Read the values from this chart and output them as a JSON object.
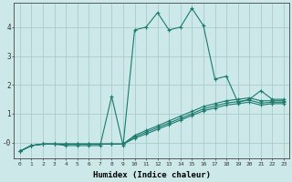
{
  "xlabel": "Humidex (Indice chaleur)",
  "bg_color": "#cce8e8",
  "grid_color": "#aacccc",
  "line_color": "#1a7a6e",
  "xlim": [
    -0.5,
    23.5
  ],
  "ylim": [
    -0.55,
    4.85
  ],
  "xticks": [
    0,
    1,
    2,
    3,
    4,
    5,
    6,
    7,
    8,
    9,
    10,
    11,
    12,
    13,
    14,
    15,
    16,
    17,
    18,
    19,
    20,
    21,
    22,
    23
  ],
  "yticks": [
    0,
    1,
    2,
    3,
    4
  ],
  "ytick_labels": [
    "-0",
    "1",
    "2",
    "3",
    "4"
  ],
  "main_x": [
    0,
    1,
    2,
    3,
    4,
    5,
    6,
    7,
    8,
    9,
    10,
    11,
    12,
    13,
    14,
    15,
    16,
    17,
    18,
    19,
    20,
    21,
    22,
    23
  ],
  "main_y": [
    -0.3,
    -0.1,
    -0.05,
    -0.05,
    -0.1,
    -0.1,
    -0.1,
    -0.1,
    1.6,
    -0.1,
    3.9,
    4.0,
    4.5,
    3.9,
    4.0,
    4.65,
    4.05,
    2.2,
    2.3,
    1.4,
    1.5,
    1.8,
    1.5,
    1.5
  ],
  "line1_x": [
    0,
    1,
    2,
    3,
    4,
    5,
    6,
    7,
    8,
    9,
    10,
    11,
    12,
    13,
    14,
    15,
    16,
    17,
    18,
    19,
    20,
    21,
    22,
    23
  ],
  "line1_y": [
    -0.3,
    -0.1,
    -0.05,
    -0.05,
    -0.05,
    -0.05,
    -0.05,
    -0.05,
    -0.05,
    -0.05,
    0.25,
    0.42,
    0.58,
    0.75,
    0.92,
    1.08,
    1.25,
    1.35,
    1.45,
    1.5,
    1.55,
    1.45,
    1.45,
    1.45
  ],
  "line2_x": [
    0,
    1,
    2,
    3,
    4,
    5,
    6,
    7,
    8,
    9,
    10,
    11,
    12,
    13,
    14,
    15,
    16,
    17,
    18,
    19,
    20,
    21,
    22,
    23
  ],
  "line2_y": [
    -0.3,
    -0.1,
    -0.05,
    -0.05,
    -0.05,
    -0.05,
    -0.05,
    -0.05,
    -0.05,
    -0.05,
    0.2,
    0.36,
    0.52,
    0.68,
    0.84,
    1.0,
    1.17,
    1.27,
    1.37,
    1.42,
    1.47,
    1.37,
    1.4,
    1.4
  ],
  "line3_x": [
    0,
    1,
    2,
    3,
    4,
    5,
    6,
    7,
    8,
    9,
    10,
    11,
    12,
    13,
    14,
    15,
    16,
    17,
    18,
    19,
    20,
    21,
    22,
    23
  ],
  "line3_y": [
    -0.3,
    -0.1,
    -0.05,
    -0.05,
    -0.05,
    -0.05,
    -0.05,
    -0.05,
    -0.05,
    -0.05,
    0.15,
    0.3,
    0.46,
    0.62,
    0.78,
    0.94,
    1.1,
    1.2,
    1.3,
    1.35,
    1.4,
    1.3,
    1.35,
    1.35
  ]
}
